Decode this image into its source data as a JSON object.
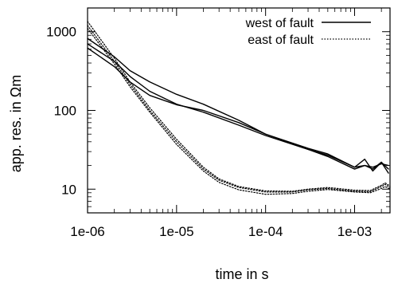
{
  "chart_data": {
    "type": "line",
    "xlabel": "time in s",
    "ylabel": "app. res. in Ωm",
    "xscale": "log",
    "yscale": "log",
    "xlim": [
      1e-06,
      0.0025
    ],
    "ylim": [
      5,
      2000
    ],
    "grid": false,
    "legend_position": "top-right",
    "x_ticks": [
      {
        "value": 1e-06,
        "label": "1e-06"
      },
      {
        "value": 1e-05,
        "label": "1e-05"
      },
      {
        "value": 0.0001,
        "label": "1e-04"
      },
      {
        "value": 0.001,
        "label": "1e-03"
      }
    ],
    "y_ticks": [
      {
        "value": 10,
        "label": "10"
      },
      {
        "value": 100,
        "label": "100"
      },
      {
        "value": 1000,
        "label": "1000"
      }
    ],
    "groups": [
      {
        "name": "west of fault",
        "style": "solid",
        "color": "#000000",
        "series": [
          {
            "x": [
              1e-06,
              2e-06,
              3e-06,
              5e-06,
              1e-05,
              2e-05,
              5e-05,
              0.0001,
              0.0003,
              0.0005,
              0.001,
              0.0013,
              0.0016,
              0.002,
              0.0024
            ],
            "y": [
              620,
              360,
              230,
              155,
              118,
              100,
              70,
              50,
              33,
              28,
              19,
              24,
              17,
              22,
              18
            ]
          },
          {
            "x": [
              1e-06,
              2e-06,
              3e-06,
              5e-06,
              1e-05,
              2e-05,
              5e-05,
              0.0001,
              0.0003,
              0.0005,
              0.001,
              0.0013,
              0.0016,
              0.002,
              0.0024
            ],
            "y": [
              700,
              420,
              270,
              175,
              120,
              95,
              65,
              48,
              32,
              27,
              19,
              20,
              18,
              22,
              16
            ]
          },
          {
            "x": [
              1e-06,
              2e-06,
              3e-06,
              5e-06,
              1e-05,
              2e-05,
              5e-05,
              0.0001,
              0.0003,
              0.0005,
              0.001,
              0.0013,
              0.0016,
              0.002,
              0.0024
            ],
            "y": [
              820,
              480,
              320,
              230,
              160,
              120,
              75,
              50,
              32,
              26,
              18,
              20,
              19,
              21,
              20
            ]
          }
        ]
      },
      {
        "name": "east of fault",
        "style": "dotted",
        "color": "#000000",
        "series": [
          {
            "x": [
              1e-06,
              2e-06,
              3e-06,
              5e-06,
              1e-05,
              2e-05,
              3e-05,
              5e-05,
              0.0001,
              0.0002,
              0.0003,
              0.0005,
              0.001,
              0.0015,
              0.002,
              0.0022,
              0.0025
            ],
            "y": [
              1200,
              420,
              215,
              100,
              40,
              18,
              13,
              10.5,
              9.2,
              9.2,
              9.8,
              10.2,
              9.4,
              9.3,
              10.8,
              11.5,
              10.5
            ]
          },
          {
            "x": [
              1e-06,
              2e-06,
              3e-06,
              5e-06,
              1e-05,
              2e-05,
              3e-05,
              5e-05,
              0.0001,
              0.0002,
              0.0003,
              0.0005,
              0.001,
              0.0015,
              0.002,
              0.0022,
              0.0025
            ],
            "y": [
              1350,
              460,
              230,
              108,
              43,
              19,
              13.5,
              10.8,
              9.5,
              9.4,
              10,
              10.5,
              9.7,
              9.6,
              11.2,
              12,
              11
            ]
          },
          {
            "x": [
              1e-06,
              2e-06,
              3e-06,
              5e-06,
              1e-05,
              2e-05,
              3e-05,
              5e-05,
              0.0001,
              0.0002,
              0.0003,
              0.0005,
              0.001,
              0.0015,
              0.002,
              0.0022,
              0.0025
            ],
            "y": [
              1100,
              390,
              200,
              95,
              37,
              17,
              12.2,
              9.8,
              8.6,
              8.8,
              9.4,
              9.9,
              9.2,
              9.0,
              10.2,
              10.8,
              10
            ]
          }
        ]
      }
    ]
  }
}
